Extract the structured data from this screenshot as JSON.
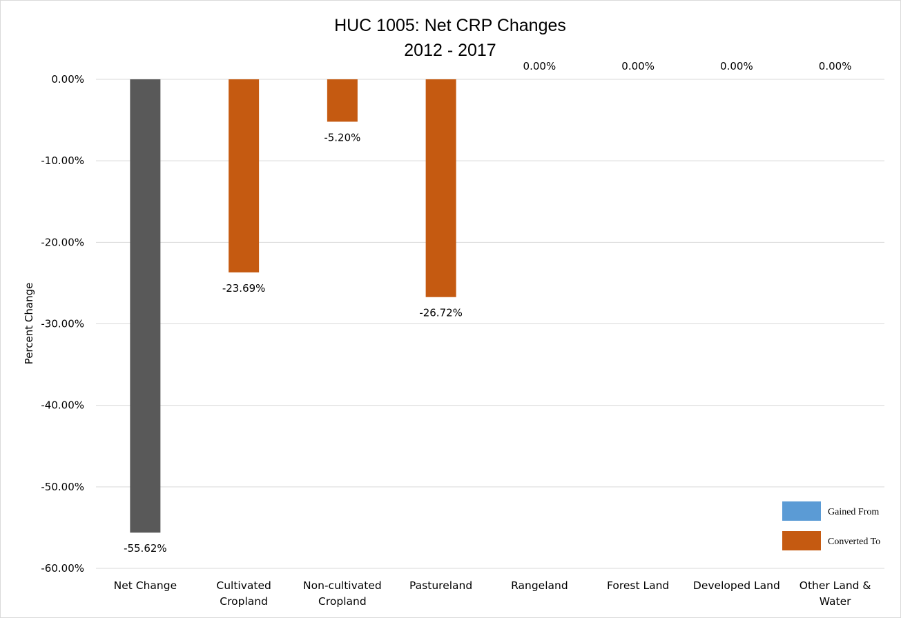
{
  "chart_data": {
    "type": "bar",
    "title": "HUC 1005: Net CRP Changes",
    "subtitle": "2012 - 2017",
    "ylabel": "Percent Change",
    "ylim": [
      -60,
      0
    ],
    "yticks": [
      "0.00%",
      "-10.00%",
      "-20.00%",
      "-30.00%",
      "-40.00%",
      "-50.00%",
      "-60.00%"
    ],
    "grid": true,
    "legend_position": "bottom-right",
    "categories": [
      [
        "Net Change"
      ],
      [
        "Cultivated",
        "Cropland"
      ],
      [
        "Non-cultivated",
        "Cropland"
      ],
      [
        "Pastureland"
      ],
      [
        "Rangeland"
      ],
      [
        "Forest Land"
      ],
      [
        "Developed Land"
      ],
      [
        "Other Land &",
        "Water"
      ]
    ],
    "bars": [
      {
        "value": -55.62,
        "label": "-55.62%",
        "color": "#595959"
      },
      {
        "value": -23.69,
        "label": "-23.69%",
        "color": "#c55a11"
      },
      {
        "value": -5.2,
        "label": "-5.20%",
        "color": "#c55a11"
      },
      {
        "value": -26.72,
        "label": "-26.72%",
        "color": "#c55a11"
      },
      {
        "value": 0,
        "label": "0.00%",
        "color": "#c55a11"
      },
      {
        "value": 0,
        "label": "0.00%",
        "color": "#c55a11"
      },
      {
        "value": 0,
        "label": "0.00%",
        "color": "#c55a11"
      },
      {
        "value": 0,
        "label": "0.00%",
        "color": "#c55a11"
      }
    ],
    "legend": [
      {
        "name": "Gained From",
        "color": "#5b9bd5"
      },
      {
        "name": "Converted To",
        "color": "#c55a11"
      }
    ]
  }
}
